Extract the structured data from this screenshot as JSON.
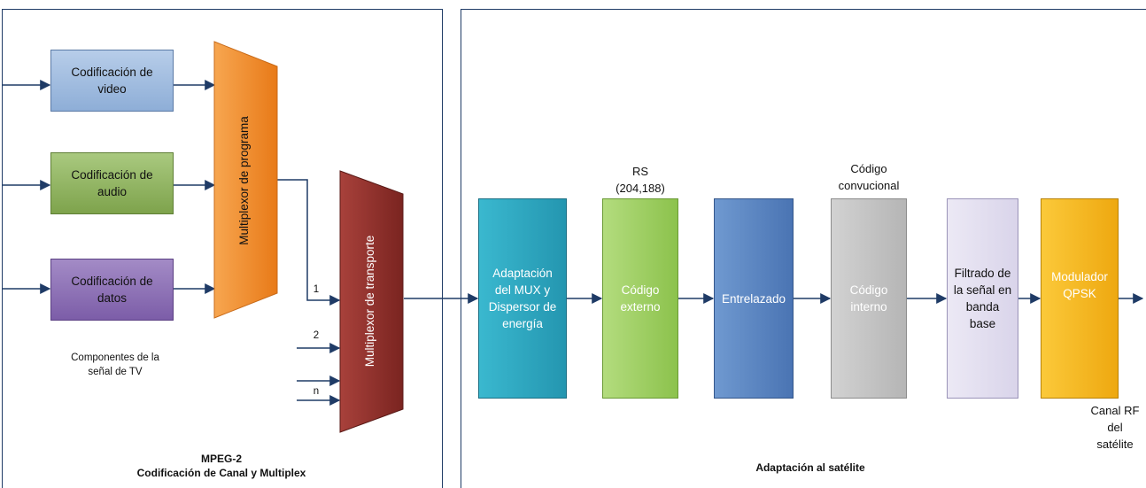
{
  "left_panel": {
    "title_line1": "MPEG-2",
    "title_line2": "Codificación de Canal y Multiplex",
    "components_label_line1": "Componentes de la",
    "components_label_line2": "señal de TV",
    "blocks": {
      "video": [
        "Codificación de",
        "video"
      ],
      "audio": [
        "Codificación de",
        "audio"
      ],
      "datos": [
        "Codificación de",
        "datos"
      ]
    },
    "program_mux": "Multiplexor de programa",
    "transport_mux": "Multiplexor de transporte",
    "inputs": [
      "1",
      "2",
      "n"
    ]
  },
  "right_panel": {
    "title": "Adaptación al satélite",
    "blocks": {
      "adaptacion": [
        "Adaptación",
        "del MUX y",
        "Dispersor de",
        "energía"
      ],
      "externo": [
        "Código",
        "externo"
      ],
      "entrelazado": [
        "Entrelazado"
      ],
      "interno": [
        "Código",
        "interno"
      ],
      "filtrado": [
        "Filtrado de",
        "la señal en",
        "banda",
        "base"
      ],
      "modulador": [
        "Modulador",
        "QPSK"
      ]
    },
    "rs_label": [
      "RS",
      "(204,188)"
    ],
    "conv_label": [
      "Código",
      "convucional"
    ],
    "rf_label": [
      "Canal RF",
      "del",
      "satélite"
    ]
  },
  "colors": {
    "border": "#1f3b66",
    "arrow": "#1f3b66",
    "video": "#9db9dc",
    "audio": "#8fb260",
    "datos": "#8c6fb4",
    "program_mux": "#f08a2a",
    "transport_mux": "#8b2a27",
    "adaptacion": "#2fa9c2",
    "externo": "#9ed05e",
    "entrelazado": "#5b86c4",
    "interno": "#c6c6c6",
    "filtrado": "#e4e0f0",
    "modulador": "#f5b914"
  }
}
